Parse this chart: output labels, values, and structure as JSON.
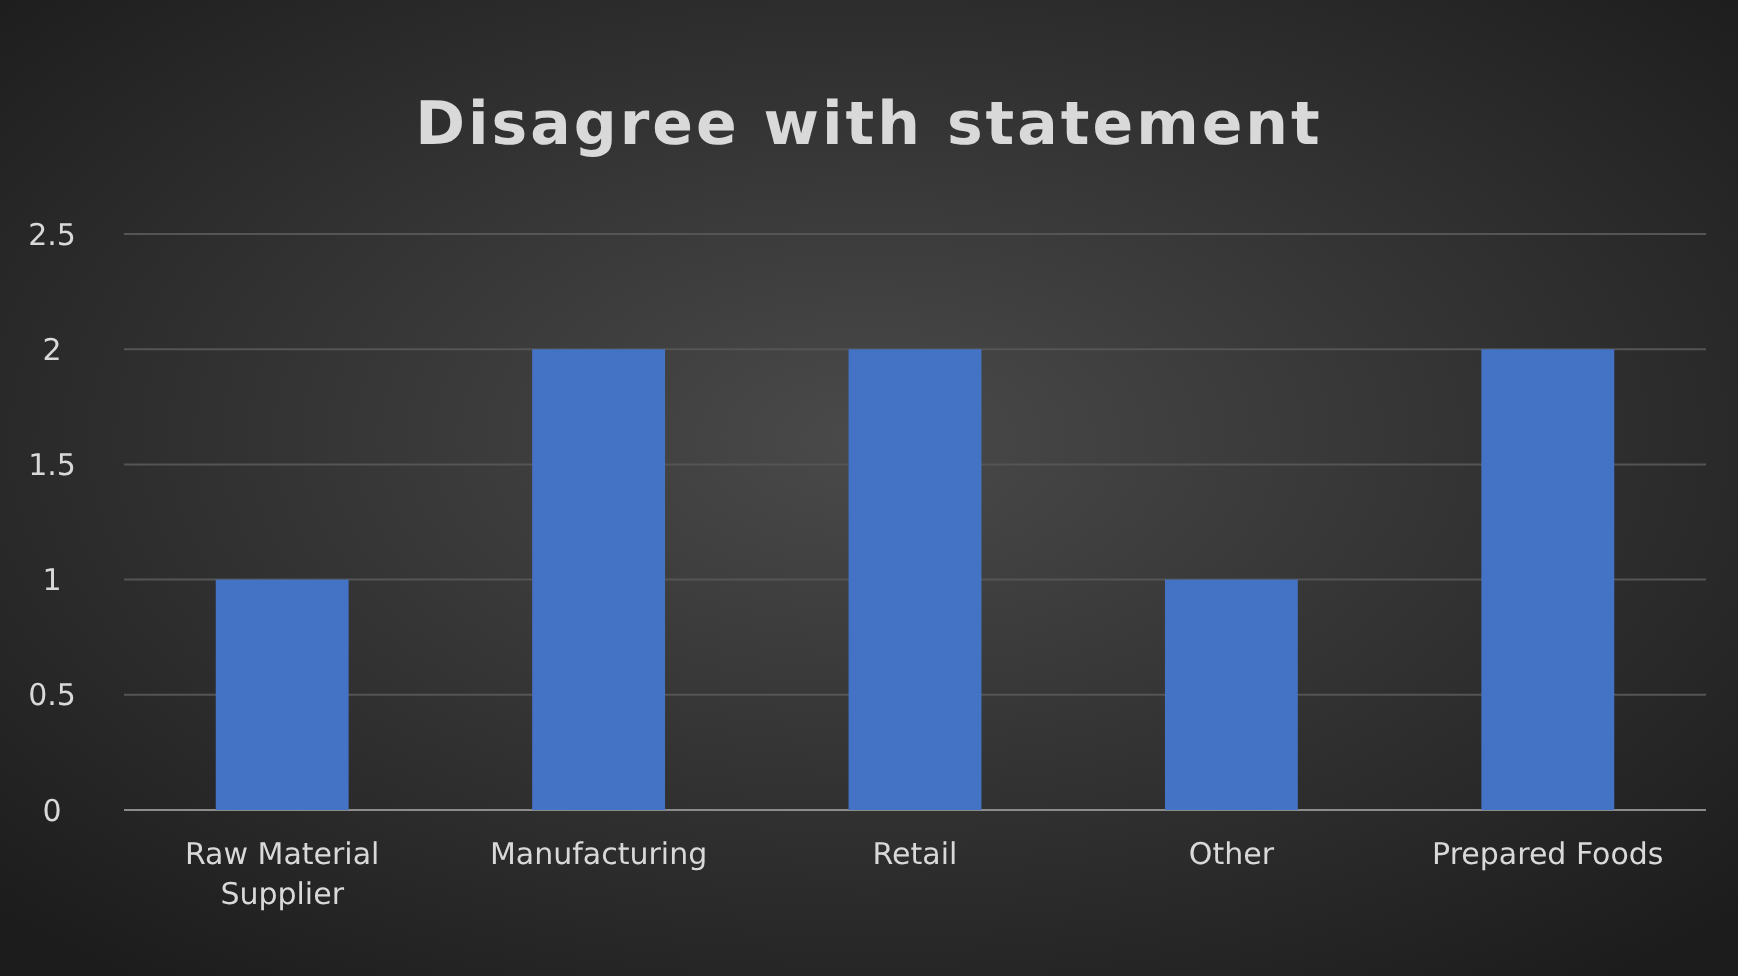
{
  "chart_data": {
    "type": "bar",
    "title": "Disagree with statement",
    "categories": [
      "Raw Material Supplier",
      "Manufacturing",
      "Retail",
      "Other",
      "Prepared Foods"
    ],
    "values": [
      1,
      2,
      2,
      1,
      2
    ],
    "color": "#4472c4",
    "ylim": [
      0,
      2.5
    ],
    "yticks": [
      0,
      0.5,
      1,
      1.5,
      2,
      2.5
    ],
    "grid": "y"
  }
}
